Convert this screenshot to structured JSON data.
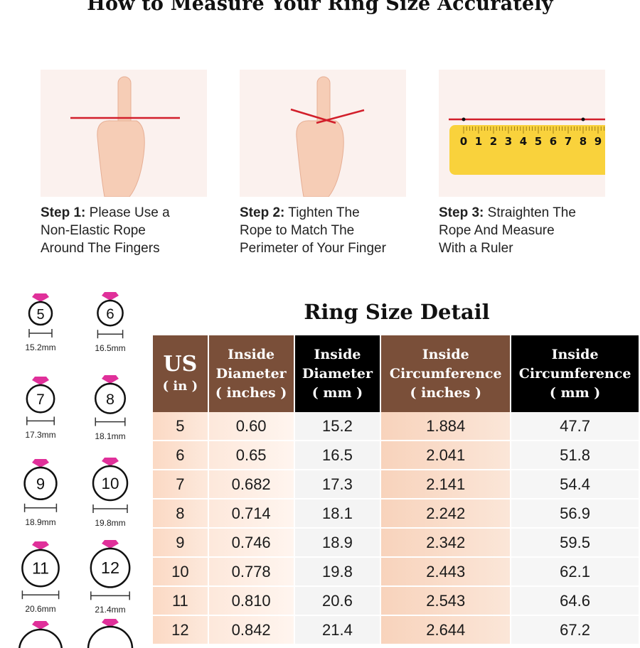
{
  "title": "How to Measure Your Ring Size Accurately",
  "steps": [
    {
      "label": "Step 1:",
      "text_lines": [
        "Please Use a",
        "Non-Elastic Rope",
        "Around The Fingers"
      ]
    },
    {
      "label": "Step 2:",
      "text_lines": [
        "Tighten The",
        "Rope to Match The",
        "Perimeter of Your Finger"
      ]
    },
    {
      "label": "Step 3:",
      "text_lines": [
        "Straighten The",
        "Rope And Measure",
        "With a Ruler"
      ]
    }
  ],
  "ruler_numbers": [
    "0",
    "1",
    "2",
    "3",
    "4",
    "5",
    "6",
    "7",
    "8",
    "9"
  ],
  "ring_icons": [
    {
      "size": "5",
      "diameter": "15.2mm"
    },
    {
      "size": "6",
      "diameter": "16.5mm"
    },
    {
      "size": "7",
      "diameter": "17.3mm"
    },
    {
      "size": "8",
      "diameter": "18.1mm"
    },
    {
      "size": "9",
      "diameter": "18.9mm"
    },
    {
      "size": "10",
      "diameter": "19.8mm"
    },
    {
      "size": "11",
      "diameter": "20.6mm"
    },
    {
      "size": "12",
      "diameter": "21.4mm"
    }
  ],
  "detail_title": "Ring Size Detail",
  "table": {
    "headers": [
      {
        "main": "US",
        "unit": "( in )",
        "color": "#7a4f39"
      },
      {
        "main": "Inside Diameter",
        "unit": "( inches )",
        "color": "#7a4f39"
      },
      {
        "main": "Inside Diameter",
        "unit": "( mm )",
        "color": "#000000"
      },
      {
        "main": "Inside Circumference",
        "unit": "( inches )",
        "color": "#7a4f39"
      },
      {
        "main": "Inside Circumference",
        "unit": "( mm )",
        "color": "#000000"
      }
    ],
    "rows": [
      [
        "5",
        "0.60",
        "15.2",
        "1.884",
        "47.7"
      ],
      [
        "6",
        "0.65",
        "16.5",
        "2.041",
        "51.8"
      ],
      [
        "7",
        "0.682",
        "17.3",
        "2.141",
        "54.4"
      ],
      [
        "8",
        "0.714",
        "18.1",
        "2.242",
        "56.9"
      ],
      [
        "9",
        "0.746",
        "18.9",
        "2.342",
        "59.5"
      ],
      [
        "10",
        "0.778",
        "19.8",
        "2.443",
        "62.1"
      ],
      [
        "11",
        "0.810",
        "20.6",
        "2.543",
        "64.6"
      ],
      [
        "12",
        "0.842",
        "21.4",
        "2.644",
        "67.2"
      ]
    ]
  },
  "colors": {
    "rope": "#d21f2b",
    "gem": "#e0309a",
    "ruler": "#f9d23c",
    "brown": "#7a4f39"
  }
}
